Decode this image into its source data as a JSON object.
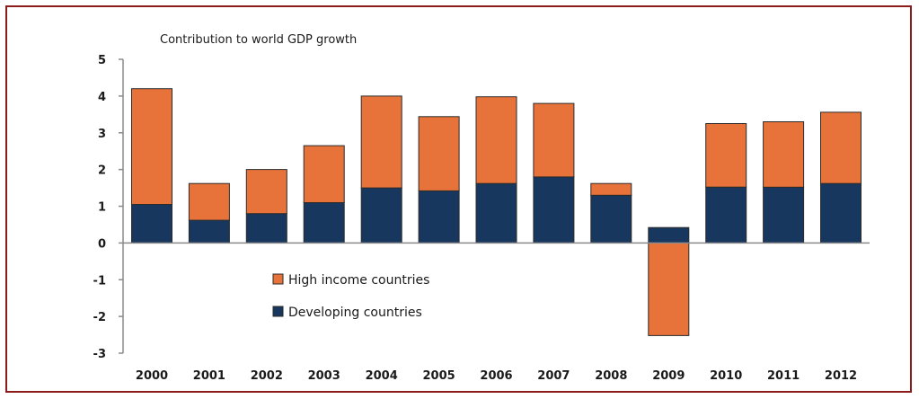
{
  "chart_data": {
    "type": "bar",
    "stacked": true,
    "title": "Contribution to world GDP growth",
    "xlabel": "",
    "ylabel": "",
    "ylim": [
      -3,
      5
    ],
    "yticks": [
      5,
      4,
      3,
      2,
      1,
      0,
      -1,
      -2,
      -3
    ],
    "categories": [
      "2000",
      "2001",
      "2002",
      "2003",
      "2004",
      "2005",
      "2006",
      "2007",
      "2008",
      "2009",
      "2010",
      "2011",
      "2012"
    ],
    "series": [
      {
        "name": "Developing countries",
        "color": "#17375e",
        "values": [
          1.05,
          0.62,
          0.8,
          1.1,
          1.5,
          1.42,
          1.62,
          1.8,
          1.3,
          0.42,
          1.52,
          1.52,
          1.62
        ]
      },
      {
        "name": "High income countries",
        "color": "#e8733a",
        "values": [
          3.15,
          1.0,
          1.2,
          1.55,
          2.5,
          2.02,
          2.36,
          2.0,
          0.32,
          -2.52,
          1.73,
          1.78,
          1.94
        ]
      }
    ],
    "grid": false,
    "legend_position": "inside-bottom-left",
    "legend_order": [
      "High income countries",
      "Developing countries"
    ]
  }
}
